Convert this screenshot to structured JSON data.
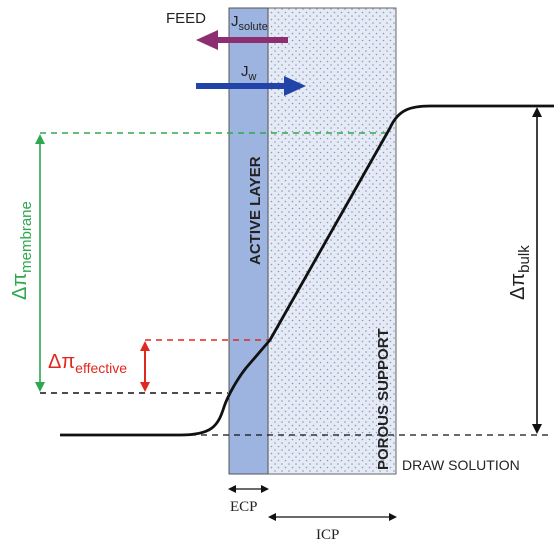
{
  "labels": {
    "feed": "FEED",
    "draw_solution": "DRAW SOLUTION",
    "active_layer": "ACTIVE  LAYER",
    "porous_support": "POROUS SUPPORT",
    "ecp": "ECP",
    "icp": "ICP"
  },
  "fluxes": {
    "solute": {
      "symbol": "J",
      "subscript": "solute"
    },
    "water": {
      "symbol": "J",
      "subscript": "w"
    }
  },
  "osmotic": {
    "membrane": {
      "symbol": "Δπ",
      "subscript": "membrane"
    },
    "effective": {
      "symbol": "Δπ",
      "subscript": "effective"
    },
    "bulk": {
      "symbol": "Δπ",
      "subscript": "bulk"
    }
  },
  "colors": {
    "active_layer_fill": "#9db4e0",
    "porous_fill": "#e4eaf6",
    "solute_arrow": "#8e2e72",
    "water_arrow": "#2244a8",
    "membrane_green": "#2ea84f",
    "effective_red": "#e0281e",
    "profile_black": "#111111"
  }
}
